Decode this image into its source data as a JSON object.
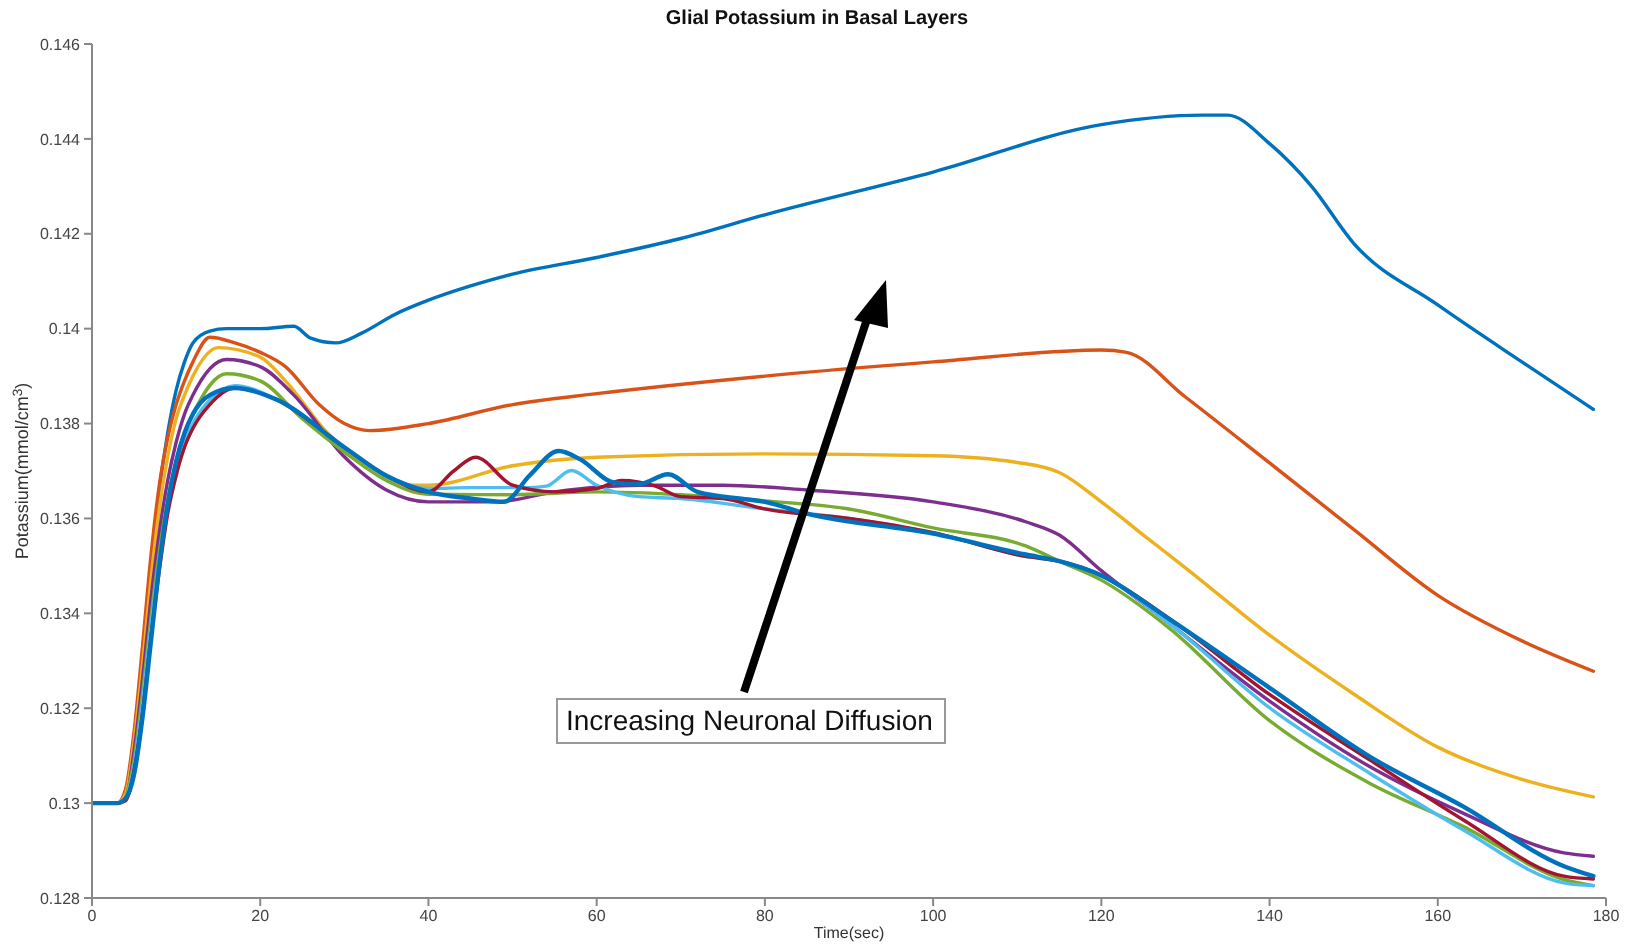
{
  "chart_data": {
    "type": "line",
    "title": "Glial Potassium in Basal Layers",
    "xlabel": "Time(sec)",
    "ylabel": "Potassium(mmol/cm$^{3}$)",
    "annotations": [
      "Increasing Neuronal Diffusion"
    ],
    "xlim": [
      0,
      180
    ],
    "xticks": [
      0,
      20,
      40,
      60,
      80,
      100,
      120,
      140,
      160,
      180
    ],
    "ylim": [
      0.128,
      0.146
    ],
    "yticks": [
      0.128,
      0.13,
      0.132,
      0.134,
      0.136,
      0.138,
      0.14,
      0.142,
      0.144,
      0.146
    ],
    "grid": false,
    "legend": false,
    "marker": "none",
    "line_style": "solid",
    "series": [
      {
        "color": "#0072bd",
        "x": [
          0,
          3,
          4,
          5,
          6,
          7,
          8,
          9,
          10,
          11,
          12,
          14,
          16,
          20,
          24,
          26,
          29,
          32,
          36,
          40,
          45,
          50,
          60,
          70,
          80,
          100,
          120,
          132,
          135,
          140,
          145,
          150,
          160,
          170,
          178.5
        ],
        "values": [
          0.13,
          0.13,
          0.1302,
          0.1312,
          0.133,
          0.135,
          0.1366,
          0.1378,
          0.1387,
          0.1393,
          0.1397,
          0.13995,
          0.14,
          0.14,
          0.14005,
          0.1398,
          0.1397,
          0.1399,
          0.1403,
          0.1406,
          0.1409,
          0.14115,
          0.1415,
          0.1419,
          0.1424,
          0.1433,
          0.1443,
          0.1445,
          0.1445,
          0.1439,
          0.143,
          0.1418,
          0.1405,
          0.1393,
          0.1383
        ]
      },
      {
        "color": "#d95319",
        "x": [
          0,
          3,
          4,
          5,
          6,
          7,
          8,
          9,
          10,
          11,
          12,
          14,
          17,
          20,
          23,
          27,
          30,
          33,
          40,
          50,
          60,
          80,
          100,
          120,
          123,
          130,
          140,
          150,
          160,
          170,
          178.5
        ],
        "values": [
          0.13,
          0.13,
          0.1303,
          0.1315,
          0.1333,
          0.1352,
          0.1367,
          0.1377,
          0.1384,
          0.1389,
          0.1393,
          0.13982,
          0.1397,
          0.1395,
          0.1392,
          0.1384,
          0.138,
          0.13785,
          0.138,
          0.1384,
          0.13863,
          0.139,
          0.1393,
          0.13955,
          0.1395,
          0.13856,
          0.13717,
          0.13577,
          0.13438,
          0.13342,
          0.13278
        ]
      },
      {
        "color": "#edb120",
        "x": [
          0,
          3,
          4,
          5,
          6,
          7,
          8,
          9,
          10,
          11,
          12,
          15,
          20,
          23,
          28,
          33,
          38,
          40,
          50,
          60,
          80,
          100,
          110,
          115,
          120,
          125,
          130,
          140,
          150,
          160,
          170,
          178.5
        ],
        "values": [
          0.13,
          0.13,
          0.1302,
          0.1313,
          0.1329,
          0.1347,
          0.1362,
          0.1373,
          0.1381,
          0.1386,
          0.139,
          0.1396,
          0.1394,
          0.1389,
          0.1378,
          0.1371,
          0.1367,
          0.1367,
          0.13711,
          0.13729,
          0.13736,
          0.13732,
          0.13718,
          0.13697,
          0.13635,
          0.13565,
          0.13496,
          0.13354,
          0.1323,
          0.13118,
          0.1305,
          0.13013
        ]
      },
      {
        "color": "#7e2f8e",
        "x": [
          0,
          3,
          4,
          5,
          6,
          7,
          8,
          9,
          10,
          11,
          12,
          16,
          20,
          24,
          30,
          35,
          40,
          48,
          55,
          65,
          75,
          85,
          100,
          111,
          115,
          120,
          128,
          140,
          152,
          163,
          175,
          178.5
        ],
        "values": [
          0.13,
          0.13,
          0.1301,
          0.1311,
          0.1326,
          0.1343,
          0.1357,
          0.1368,
          0.1376,
          0.1382,
          0.1386,
          0.13935,
          0.1392,
          0.1386,
          0.1373,
          0.1366,
          0.13635,
          0.13635,
          0.13656,
          0.1367,
          0.1367,
          0.1366,
          0.13635,
          0.13593,
          0.13565,
          0.1349,
          0.1338,
          0.13215,
          0.13076,
          0.12979,
          0.12895,
          0.12888
        ]
      },
      {
        "color": "#77ac30",
        "x": [
          4,
          5,
          6,
          7,
          8,
          9,
          10,
          11,
          12,
          16,
          20,
          25,
          30,
          35,
          40,
          50,
          60,
          70,
          80,
          90,
          100,
          111,
          115,
          120,
          128,
          140,
          152,
          163,
          175,
          178.5
        ],
        "values": [
          0.1301,
          0.1309,
          0.1323,
          0.1339,
          0.1353,
          0.1364,
          0.1372,
          0.1378,
          0.1382,
          0.13905,
          0.1389,
          0.1381,
          0.1374,
          0.1368,
          0.13651,
          0.1365,
          0.13656,
          0.1365,
          0.13637,
          0.1362,
          0.1358,
          0.13542,
          0.1351,
          0.1347,
          0.1337,
          0.13174,
          0.13041,
          0.12951,
          0.12839,
          0.12826
        ]
      },
      {
        "color": "#4dbeee",
        "x": [
          0,
          3,
          4,
          5,
          6,
          7,
          8,
          9,
          10,
          11,
          12,
          14,
          17,
          22,
          30,
          35,
          40,
          45,
          52,
          54,
          57,
          60,
          65,
          70,
          80,
          90,
          100,
          111,
          115,
          120,
          128,
          140,
          152,
          163,
          175,
          178.5
        ],
        "values": [
          0.13,
          0.13,
          0.1301,
          0.1308,
          0.1321,
          0.1337,
          0.1351,
          0.1362,
          0.137,
          0.1376,
          0.138,
          0.1385,
          0.1388,
          0.1385,
          0.1375,
          0.1369,
          0.13663,
          0.13665,
          0.13665,
          0.13668,
          0.13701,
          0.1367,
          0.13646,
          0.13642,
          0.1362,
          0.136,
          0.1357,
          0.1352,
          0.1351,
          0.1348,
          0.1338,
          0.13201,
          0.13062,
          0.12944,
          0.12832,
          0.12826
        ]
      },
      {
        "color": "#a2142f",
        "x": [
          0,
          3,
          4,
          5,
          6,
          7,
          8,
          9,
          10,
          11,
          12,
          14,
          17,
          22,
          30,
          35,
          40,
          43,
          45.6,
          50,
          55,
          60,
          63,
          67,
          70,
          75,
          80,
          90,
          100,
          111,
          115,
          120,
          128,
          140,
          152,
          163,
          175,
          178.5
        ],
        "values": [
          0.13,
          0.13,
          0.13005,
          0.1307,
          0.1319,
          0.1335,
          0.1349,
          0.1361,
          0.1369,
          0.1375,
          0.1379,
          0.1384,
          0.13875,
          0.1385,
          0.1375,
          0.1369,
          0.13656,
          0.137,
          0.13729,
          0.1367,
          0.13656,
          0.13663,
          0.1368,
          0.13668,
          0.13646,
          0.13642,
          0.1362,
          0.136,
          0.1357,
          0.1352,
          0.1351,
          0.1348,
          0.1339,
          0.13229,
          0.1309,
          0.12965,
          0.12846,
          0.1284
        ]
      },
      {
        "color": "#0072bd",
        "x": [
          0,
          3,
          4,
          5,
          6,
          7,
          8,
          9,
          10,
          11,
          12,
          14,
          17,
          22,
          30,
          35,
          40,
          45,
          49,
          52,
          55.5,
          58,
          62,
          65,
          68.5,
          72,
          78,
          80,
          85,
          100,
          111,
          115,
          120,
          128,
          140,
          152,
          163,
          175,
          178.5
        ],
        "values": [
          0.13,
          0.13,
          0.1301,
          0.1306,
          0.1318,
          0.1334,
          0.135,
          0.1363,
          0.1372,
          0.1378,
          0.1382,
          0.1386,
          0.13875,
          0.1385,
          0.1375,
          0.1369,
          0.13656,
          0.13642,
          0.13635,
          0.1369,
          0.13742,
          0.13725,
          0.13676,
          0.13672,
          0.13693,
          0.13656,
          0.1364,
          0.13635,
          0.1361,
          0.13568,
          0.13524,
          0.1351,
          0.1348,
          0.13389,
          0.13243,
          0.13097,
          0.12993,
          0.12867,
          0.12846
        ]
      }
    ]
  }
}
